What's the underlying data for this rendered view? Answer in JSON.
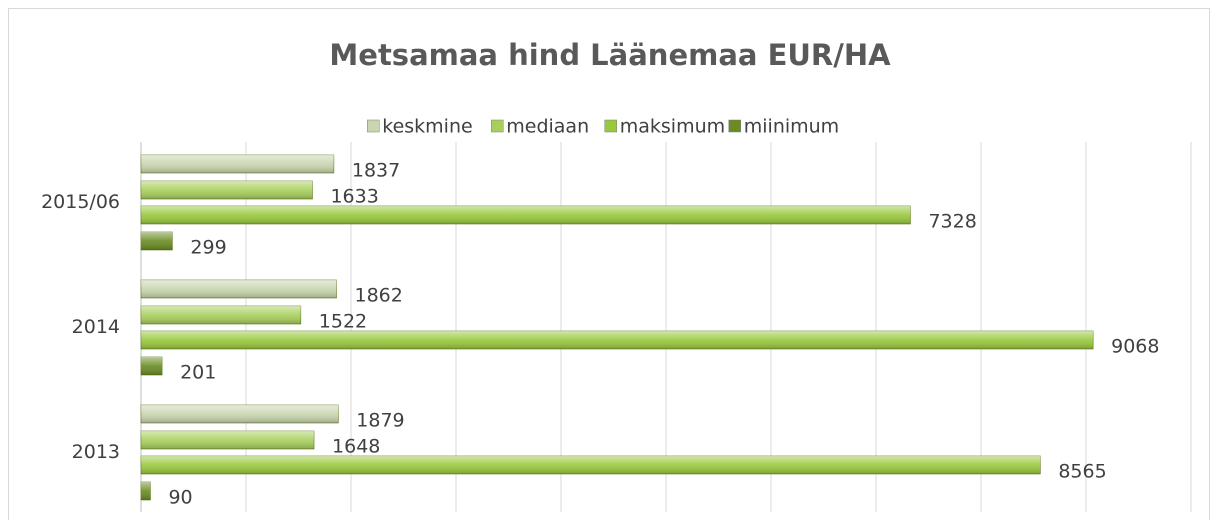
{
  "chart_data": {
    "type": "hbar",
    "title": "Metsamaa hind Läänemaa EUR/HA",
    "categories": [
      "2013",
      "2014",
      "2015/06"
    ],
    "series": [
      {
        "name": "keskmine",
        "color": "#c8d5ae",
        "values": [
          1879,
          1862,
          1837
        ]
      },
      {
        "name": "mediaan",
        "color": "#a8cf5c",
        "values": [
          1648,
          1522,
          1633
        ]
      },
      {
        "name": "maksimum",
        "color": "#98c93c",
        "values": [
          8565,
          9068,
          7328
        ]
      },
      {
        "name": "miinimum",
        "color": "#6a8c22",
        "values": [
          90,
          201,
          299
        ]
      }
    ],
    "xlim": [
      0,
      10000
    ],
    "xticks": [
      0,
      1000,
      2000,
      3000,
      4000,
      5000,
      6000,
      7000,
      8000,
      9000,
      10000
    ],
    "grid": true,
    "legend": "top"
  }
}
